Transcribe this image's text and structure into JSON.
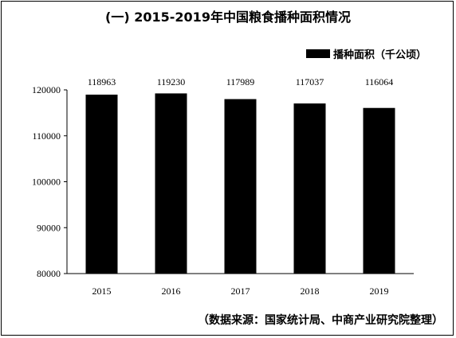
{
  "chart_data": {
    "type": "bar",
    "title": "(一) 2015-2019年中国粮食播种面积情况",
    "categories": [
      "2015",
      "2016",
      "2017",
      "2018",
      "2019"
    ],
    "series": [
      {
        "name": "播种面积（千公顷）",
        "values": [
          118963,
          119230,
          117989,
          117037,
          116064
        ]
      }
    ],
    "ylim": [
      80000,
      120000
    ],
    "yticks": [
      "80000",
      "90000",
      "100000",
      "110000",
      "120000"
    ],
    "xlabel": "",
    "ylabel": "",
    "grid": false,
    "legend_position": "top-right",
    "bar_color": "#000000",
    "source": "（数据来源：国家统计局、中商产业研究院整理）"
  }
}
